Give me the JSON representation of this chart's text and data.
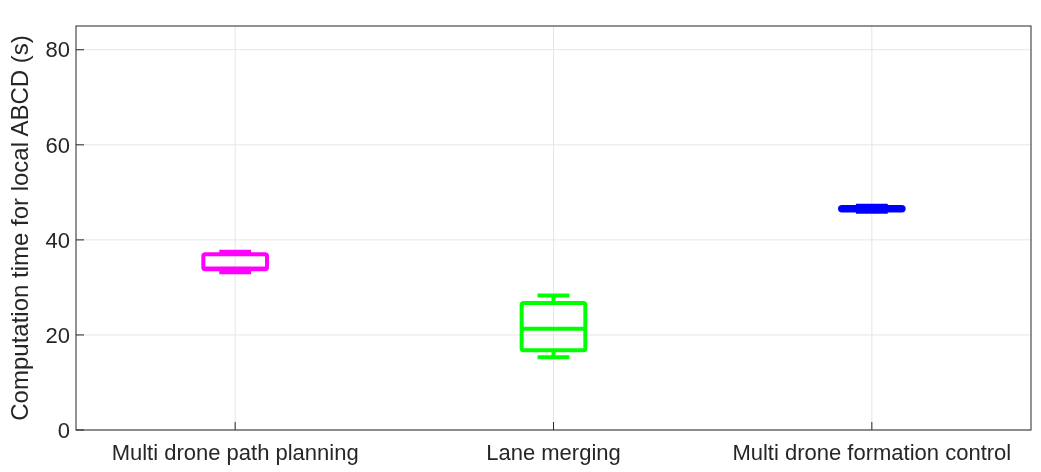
{
  "chart_data": {
    "type": "box",
    "ylabel": "Computation time for local ABCD (s)",
    "categories": [
      "Multi drone path planning",
      "Lane merging",
      "Multi drone formation control"
    ],
    "boxes": [
      {
        "low": 33.2,
        "q1": 33.8,
        "median": 34,
        "q3": 37,
        "high": 37.5
      },
      {
        "low": 15.3,
        "q1": 16.8,
        "median": 21.3,
        "q3": 26.7,
        "high": 28.3
      },
      {
        "low": 45.9,
        "q1": 46.2,
        "median": 46.5,
        "q3": 46.9,
        "high": 47.2
      }
    ],
    "colors": [
      "#ff00ff",
      "#00ff00",
      "#0000ff"
    ],
    "ylim": [
      0,
      85
    ],
    "yticks": [
      0,
      20,
      40,
      60,
      80
    ],
    "grid": true
  }
}
